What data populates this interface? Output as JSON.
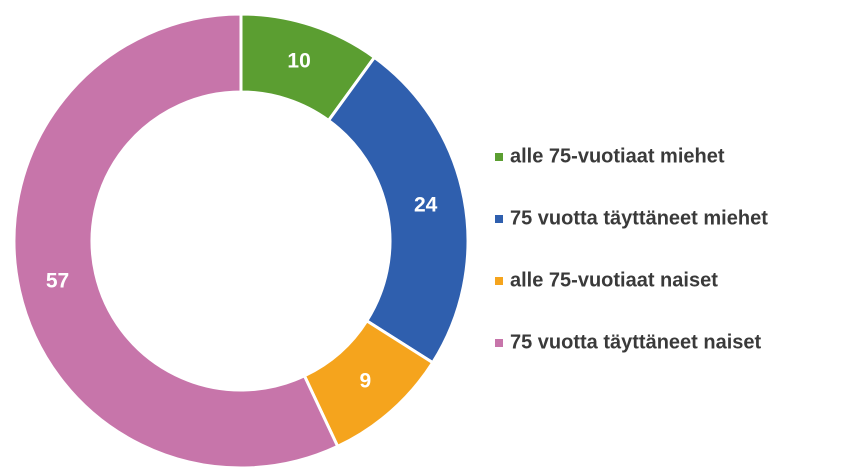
{
  "chart_data": {
    "type": "donut",
    "categories": [
      "alle 75-vuotiaat miehet",
      "75 vuotta täyttäneet miehet",
      "alle 75-vuotiaat naiset",
      "75 vuotta täyttäneet naiset"
    ],
    "values": [
      10,
      24,
      9,
      57
    ],
    "colors": [
      "#5b9e31",
      "#2f5fae",
      "#f5a41d",
      "#c775aa"
    ],
    "legend": "right"
  }
}
